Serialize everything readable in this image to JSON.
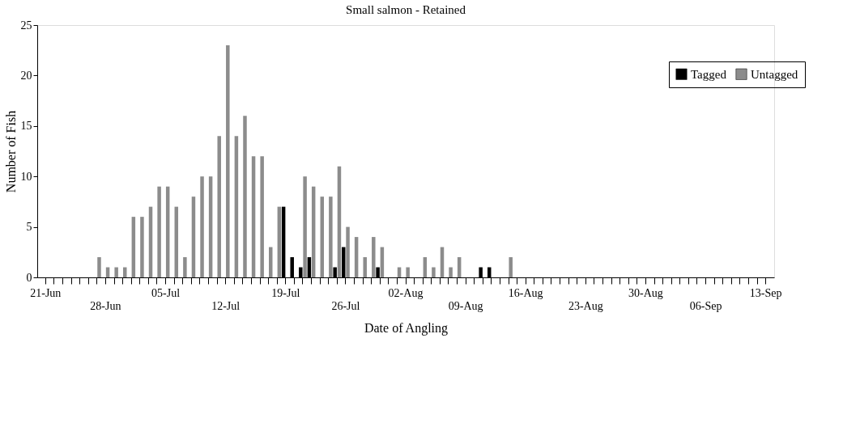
{
  "chart_data": {
    "type": "bar",
    "title": "Small salmon - Retained",
    "xlabel": "Date of Angling",
    "ylabel": "Number of Fish",
    "categories": [
      "21-Jun",
      null,
      null,
      null,
      null,
      null,
      null,
      "28-Jun",
      null,
      null,
      null,
      null,
      null,
      null,
      "05-Jul",
      null,
      null,
      null,
      null,
      null,
      null,
      "12-Jul",
      null,
      null,
      null,
      null,
      null,
      null,
      "19-Jul",
      null,
      null,
      null,
      null,
      null,
      null,
      "26-Jul",
      null,
      null,
      null,
      null,
      null,
      null,
      "02-Aug",
      null,
      null,
      null,
      null,
      null,
      null,
      "09-Aug",
      null,
      null,
      null,
      null,
      null,
      null,
      "16-Aug",
      null,
      null,
      null,
      null,
      null,
      null,
      "23-Aug",
      null,
      null,
      null,
      null,
      null,
      null,
      "30-Aug",
      null,
      null,
      null,
      null,
      null,
      null,
      "06-Sep",
      null,
      null,
      null,
      null,
      null,
      null,
      "13-Sep"
    ],
    "series": [
      {
        "name": "Tagged",
        "color": "#000000",
        "values": [
          0,
          0,
          0,
          0,
          0,
          0,
          0,
          0,
          0,
          0,
          0,
          0,
          0,
          0,
          0,
          0,
          0,
          0,
          0,
          0,
          0,
          0,
          0,
          0,
          0,
          0,
          0,
          0,
          7,
          2,
          1,
          2,
          0,
          0,
          1,
          3,
          0,
          0,
          0,
          1,
          0,
          0,
          0,
          0,
          0,
          0,
          0,
          0,
          0,
          0,
          0,
          1,
          1,
          0,
          0,
          0,
          0,
          0,
          0,
          0,
          0,
          0,
          0,
          0,
          0,
          0,
          0,
          0,
          0,
          0,
          0,
          0,
          0,
          0,
          0,
          0,
          0,
          0,
          0,
          0,
          0,
          0,
          0,
          0,
          0
        ]
      },
      {
        "name": "Untagged",
        "color": "#8c8c8c",
        "values": [
          0,
          0,
          0,
          0,
          0,
          0,
          2,
          1,
          1,
          1,
          6,
          6,
          7,
          9,
          9,
          7,
          2,
          8,
          10,
          10,
          14,
          23,
          14,
          16,
          12,
          12,
          3,
          7,
          0,
          0,
          10,
          9,
          8,
          8,
          11,
          5,
          4,
          2,
          4,
          3,
          0,
          1,
          1,
          0,
          2,
          1,
          3,
          1,
          2,
          0,
          0,
          0,
          0,
          0,
          2,
          0,
          0,
          0,
          0,
          0,
          0,
          0,
          0,
          0,
          0,
          0,
          0,
          0,
          0,
          0,
          0,
          0,
          0,
          0,
          0,
          0,
          0,
          0,
          0,
          0,
          0,
          0,
          0,
          0,
          0
        ]
      }
    ],
    "ylim": [
      0,
      25
    ],
    "yticks": [
      0,
      5,
      10,
      15,
      20,
      25
    ],
    "grid": false,
    "legend": "top right"
  }
}
